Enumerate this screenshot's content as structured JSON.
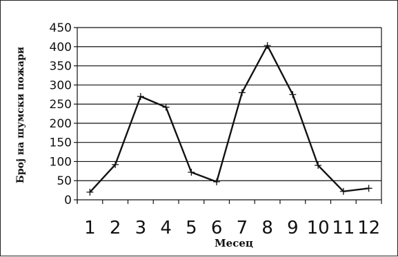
{
  "chart_data": {
    "type": "line",
    "title": "",
    "xlabel": "Месец",
    "ylabel": "Број на шумски пожари",
    "categories": [
      "1",
      "2",
      "3",
      "4",
      "5",
      "6",
      "7",
      "8",
      "9",
      "10",
      "11",
      "12"
    ],
    "series": [
      {
        "values": [
          20,
          92,
          270,
          242,
          72,
          47,
          280,
          403,
          275,
          90,
          22,
          30
        ]
      }
    ],
    "ylim": [
      0,
      450
    ],
    "yticks": [
      0,
      50,
      100,
      150,
      200,
      250,
      300,
      350,
      400,
      450
    ],
    "grid": true,
    "legend": "none",
    "colors": {
      "line": "#111111",
      "grid": "#111111",
      "background": "#ffffff"
    }
  }
}
